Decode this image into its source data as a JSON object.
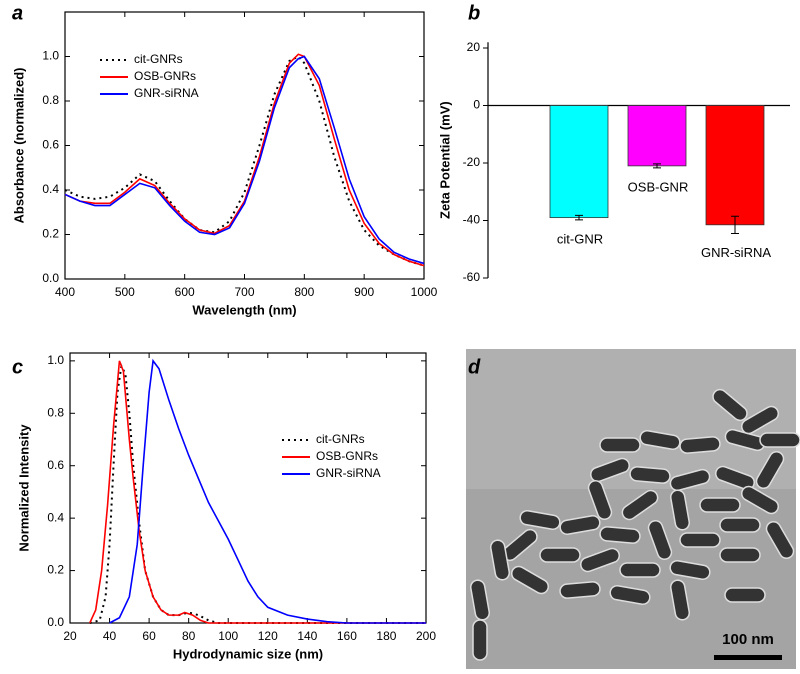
{
  "chart_data": [
    {
      "type": "line",
      "panel": "a",
      "xlabel": "Wavelength (nm)",
      "ylabel": "Absorbance (normalized)",
      "xlim": [
        400,
        1000
      ],
      "xticks": [
        400,
        500,
        600,
        700,
        800,
        900,
        1000
      ],
      "ylim": [
        0,
        1.2
      ],
      "yticks": [
        {
          "value": 0,
          "label": "0.0"
        },
        {
          "value": 0.2,
          "label": "0.2"
        },
        {
          "value": 0.4,
          "label": "0.4"
        },
        {
          "value": 0.6,
          "label": "0.6"
        },
        {
          "value": 0.8,
          "label": "0.8"
        },
        {
          "value": 1,
          "label": "1.0"
        }
      ],
      "legend": "upper left",
      "x": [
        400,
        425,
        450,
        475,
        500,
        525,
        550,
        575,
        600,
        625,
        650,
        675,
        700,
        725,
        750,
        775,
        790,
        800,
        825,
        850,
        875,
        900,
        925,
        950,
        975,
        1000
      ],
      "series": [
        {
          "name": "cit-GNRs",
          "color": "#000000",
          "style": "dotted",
          "values": [
            0.4,
            0.37,
            0.36,
            0.37,
            0.41,
            0.47,
            0.44,
            0.35,
            0.27,
            0.22,
            0.21,
            0.26,
            0.39,
            0.6,
            0.83,
            0.98,
            1.0,
            0.97,
            0.8,
            0.55,
            0.35,
            0.22,
            0.15,
            0.11,
            0.08,
            0.06
          ]
        },
        {
          "name": "OSB-GNRs",
          "color": "#ff0000",
          "style": "solid",
          "values": [
            0.38,
            0.35,
            0.34,
            0.34,
            0.39,
            0.45,
            0.42,
            0.34,
            0.27,
            0.22,
            0.205,
            0.24,
            0.35,
            0.55,
            0.79,
            0.97,
            1.01,
            1.0,
            0.87,
            0.63,
            0.4,
            0.25,
            0.16,
            0.11,
            0.08,
            0.06
          ]
        },
        {
          "name": "GNR-siRNA",
          "color": "#0000ff",
          "style": "solid",
          "values": [
            0.38,
            0.35,
            0.33,
            0.33,
            0.38,
            0.43,
            0.41,
            0.33,
            0.26,
            0.21,
            0.2,
            0.23,
            0.34,
            0.53,
            0.77,
            0.95,
            0.99,
            1.0,
            0.9,
            0.68,
            0.45,
            0.28,
            0.18,
            0.12,
            0.09,
            0.07
          ]
        }
      ]
    },
    {
      "type": "bar",
      "panel": "b",
      "ylabel": "Zeta Potential (mV)",
      "ylim": [
        -60,
        22
      ],
      "yticks": [
        20,
        0,
        -20,
        -40,
        -60
      ],
      "categories": [
        "cit-GNR",
        "OSB-GNR",
        "GNR-siRNA"
      ],
      "values": [
        -39,
        -21,
        -41.5
      ],
      "errors": [
        0.8,
        0.7,
        3
      ],
      "colors": [
        "#00ffff",
        "#ff00ff",
        "#ff0000"
      ]
    },
    {
      "type": "line",
      "panel": "c",
      "xlabel": "Hydrodynamic size (nm)",
      "ylabel": "Normalized Intensity",
      "xlim": [
        20,
        200
      ],
      "xticks": [
        20,
        40,
        60,
        80,
        100,
        120,
        140,
        160,
        180,
        200
      ],
      "ylim": [
        0,
        1.03
      ],
      "yticks": [
        {
          "value": 0,
          "label": "0.0"
        },
        {
          "value": 0.2,
          "label": "0.2"
        },
        {
          "value": 0.4,
          "label": "0.4"
        },
        {
          "value": 0.6,
          "label": "0.6"
        },
        {
          "value": 0.8,
          "label": "0.8"
        },
        {
          "value": 1,
          "label": "1.0"
        }
      ],
      "legend": "center right",
      "series": [
        {
          "name": "cit-GNRs",
          "color": "#000000",
          "style": "dotted",
          "x": [
            30,
            35,
            38,
            40,
            42,
            44,
            46,
            48,
            50,
            52,
            55,
            58,
            62,
            66,
            70,
            75,
            80,
            85,
            90,
            95,
            200
          ],
          "values": [
            0,
            0.01,
            0.1,
            0.3,
            0.6,
            0.88,
            0.98,
            0.95,
            0.8,
            0.6,
            0.38,
            0.2,
            0.1,
            0.05,
            0.03,
            0.03,
            0.04,
            0.03,
            0.01,
            0,
            0
          ]
        },
        {
          "name": "OSB-GNRs",
          "color": "#ff0000",
          "style": "solid",
          "x": [
            30,
            33,
            36,
            39,
            42,
            45,
            47,
            50,
            52,
            55,
            58,
            62,
            66,
            70,
            75,
            78,
            82,
            86,
            90,
            200
          ],
          "values": [
            0,
            0.05,
            0.2,
            0.45,
            0.75,
            1.0,
            0.96,
            0.7,
            0.55,
            0.35,
            0.2,
            0.1,
            0.05,
            0.03,
            0.03,
            0.04,
            0.03,
            0.01,
            0,
            0
          ]
        },
        {
          "name": "GNR-siRNA",
          "color": "#0000ff",
          "style": "solid",
          "x": [
            40,
            45,
            50,
            54,
            57,
            60,
            62,
            65,
            70,
            75,
            80,
            85,
            90,
            95,
            100,
            105,
            110,
            115,
            120,
            130,
            140,
            150,
            160,
            200
          ],
          "values": [
            0,
            0.02,
            0.1,
            0.3,
            0.6,
            0.88,
            1.0,
            0.97,
            0.85,
            0.74,
            0.64,
            0.55,
            0.46,
            0.39,
            0.32,
            0.24,
            0.16,
            0.1,
            0.06,
            0.03,
            0.015,
            0.005,
            0,
            0
          ]
        }
      ]
    }
  ],
  "image": {
    "panel": "d",
    "scale_bar_label": "100 nm"
  }
}
